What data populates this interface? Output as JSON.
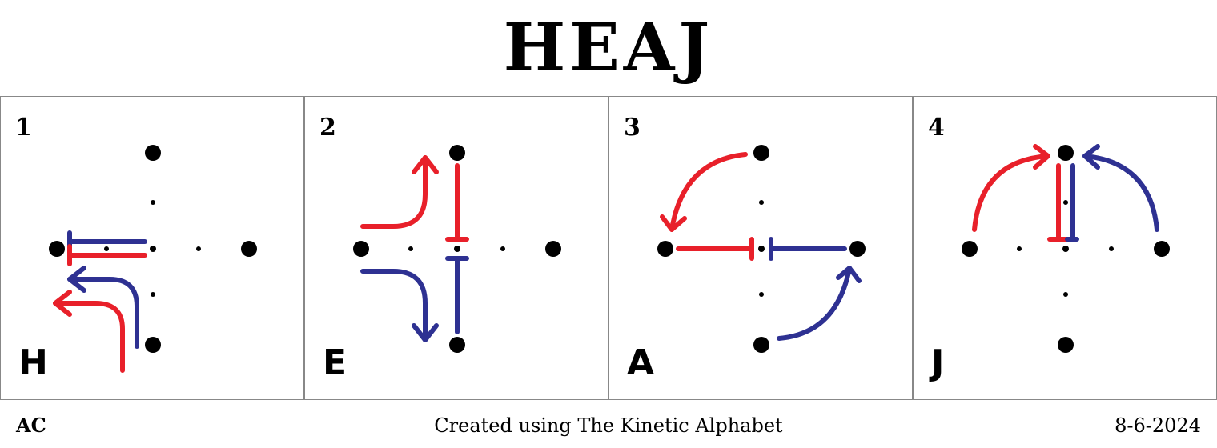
{
  "title": "HEAJ",
  "panels": [
    {
      "number": "1",
      "letter": "H"
    },
    {
      "number": "2",
      "letter": "E"
    },
    {
      "number": "3",
      "letter": "A"
    },
    {
      "number": "4",
      "letter": "J"
    }
  ],
  "footer": {
    "author": "AC",
    "credit": "Created using The Kinetic Alphabet",
    "date": "8-6-2024"
  },
  "colors": {
    "red": "#e8202a",
    "blue": "#2e3192",
    "dot": "#000000"
  }
}
